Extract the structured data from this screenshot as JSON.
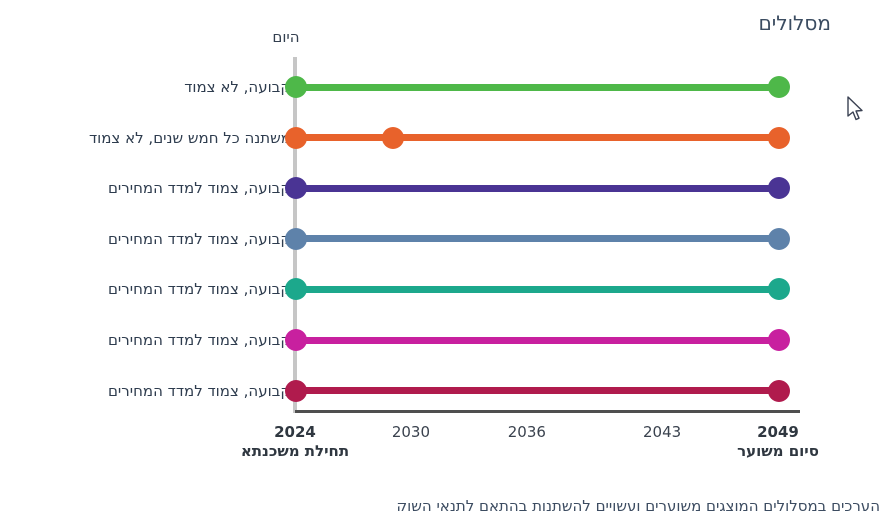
{
  "footnote": "הערכים במסלולים המוצגים משוערים ועשויים להשתנות בהתאם לתנאי השוק",
  "chart_data": {
    "type": "timeline",
    "title": "מסלולים",
    "today_label": "היום",
    "xlabel": "",
    "ylabel": "",
    "x_range": [
      2024,
      2049
    ],
    "grid": false,
    "legend_position": "none",
    "x_ticks": [
      {
        "year": 2024,
        "label": "2024",
        "bold": true
      },
      {
        "year": 2030,
        "label": "2030",
        "bold": false
      },
      {
        "year": 2036,
        "label": "2036",
        "bold": false
      },
      {
        "year": 2043,
        "label": "2043",
        "bold": false
      },
      {
        "year": 2049,
        "label": "2049",
        "bold": true
      }
    ],
    "x_start_caption": "תחילת משכנתא",
    "x_end_caption": "סיום משוער",
    "series": [
      {
        "label": "קבועה, לא צמוד",
        "color": "#4eb849",
        "start": 2024,
        "end": 2049,
        "markers": [
          2024,
          2049
        ]
      },
      {
        "label": "משתנה כל חמש שנים, לא צמוד",
        "color": "#e8622b",
        "start": 2024,
        "end": 2049,
        "markers": [
          2024,
          2029,
          2049
        ]
      },
      {
        "label": "קבועה, צמוד למדד המחירים",
        "color": "#4a3494",
        "start": 2024,
        "end": 2049,
        "markers": [
          2024,
          2049
        ]
      },
      {
        "label": "קבועה, צמוד למדד המחירים",
        "color": "#5e82aa",
        "start": 2024,
        "end": 2049,
        "markers": [
          2024,
          2049
        ]
      },
      {
        "label": "קבועה, צמוד למדד המחירים",
        "color": "#1ca88c",
        "start": 2024,
        "end": 2049,
        "markers": [
          2024,
          2049
        ]
      },
      {
        "label": "קבועה, צמוד למדד המחירים",
        "color": "#c8209f",
        "start": 2024,
        "end": 2049,
        "markers": [
          2024,
          2049
        ]
      },
      {
        "label": "קבועה, צמוד למדד המחירים",
        "color": "#b01b4d",
        "start": 2024,
        "end": 2049,
        "markers": [
          2024,
          2049
        ]
      }
    ]
  }
}
